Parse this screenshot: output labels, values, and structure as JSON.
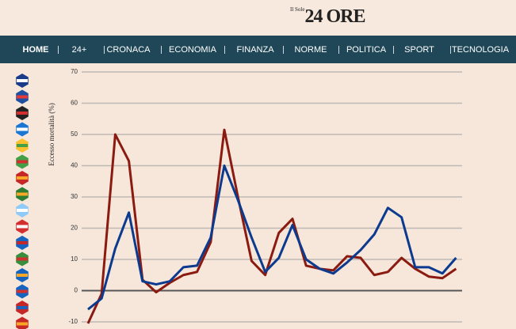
{
  "header": {
    "logo_small": "Il Sole",
    "logo": "24 ORE"
  },
  "nav": [
    "HOME",
    "24+",
    "CRONACA",
    "ECONOMIA",
    "FINANZA",
    "NORME",
    "POLITICA",
    "SPORT",
    "TECNOLOGIA"
  ],
  "chart_data": {
    "type": "line",
    "ylabel": "Eccesso mortalità (%)",
    "ylim": [
      -10,
      70
    ],
    "yticks": [
      -10,
      0,
      10,
      20,
      30,
      40,
      50,
      60,
      70
    ],
    "grid": true,
    "series": [
      {
        "color": "#0b3a8f",
        "values": [
          -6,
          -2.5,
          13.5,
          25,
          3,
          2,
          3,
          7.5,
          8,
          17,
          40,
          29,
          17,
          6,
          10.5,
          21,
          10,
          7,
          5.5,
          9,
          13,
          18,
          26.5,
          23.5,
          7.5,
          7.5,
          5.5,
          10.5
        ]
      },
      {
        "color": "#8b1a10",
        "values": [
          -10.5,
          -1,
          50,
          41.5,
          3.5,
          -0.5,
          2.5,
          5,
          6,
          15.5,
          51.5,
          30,
          9.5,
          5,
          18.5,
          23,
          8,
          7,
          6.5,
          11,
          10.5,
          5,
          6,
          10.5,
          7,
          4.5,
          4,
          7
        ]
      }
    ]
  }
}
